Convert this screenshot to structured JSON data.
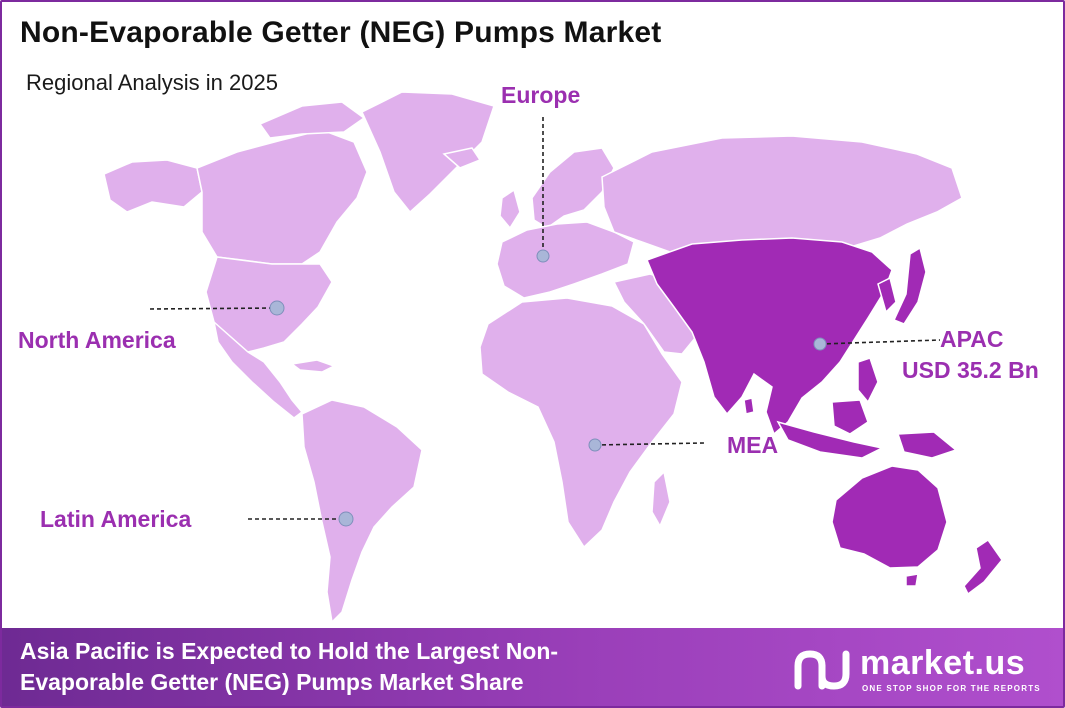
{
  "header": {
    "title": "Non-Evaporable Getter (NEG) Pumps Market",
    "subtitle": "Regional Analysis in 2025"
  },
  "regions": {
    "europe": {
      "label": "Europe"
    },
    "north_america": {
      "label": "North America"
    },
    "apac": {
      "label": "APAC",
      "value": "USD 35.2 Bn"
    },
    "mea": {
      "label": "MEA"
    },
    "latin_america": {
      "label": "Latin America"
    }
  },
  "footer": {
    "text": "Asia Pacific is Expected to Hold the Largest Non-Evaporable Getter (NEG) Pumps Market Share",
    "brand_name": "market.us",
    "brand_tagline": "ONE STOP SHOP FOR THE REPORTS"
  },
  "colors": {
    "land": "#e0b0ec",
    "highlight": "#a12ab5",
    "label": "#9b2fb0",
    "footer_start": "#6e2a93",
    "footer_end": "#b04fcd",
    "marker": "#a9b6d8"
  }
}
